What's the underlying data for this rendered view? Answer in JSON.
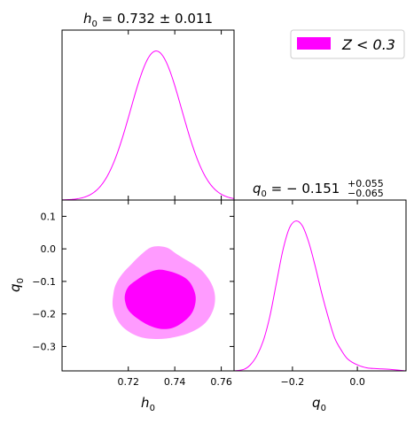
{
  "chart_data": {
    "type": "corner",
    "color": "#ff00ff",
    "fill_outer": "#ff9bff",
    "fill_inner": "#ff00ff",
    "legend": {
      "label": "Z < 0.3",
      "placement": "top-right"
    },
    "h0_marginal": {
      "type": "line",
      "title_prefix": "h",
      "title_sub": "0",
      "title_value": " = 0.732 ± 0.011",
      "mean": 0.732,
      "sigma": 0.011,
      "xlim": [
        0.6915,
        0.7655
      ],
      "ylim": [
        0,
        1.14
      ]
    },
    "q0_marginal": {
      "type": "line",
      "title_prefix": "q",
      "title_sub": "0",
      "title_value": " = − 0.151",
      "title_sup": "+0.055",
      "title_low": "−0.065",
      "xlim": [
        -0.38,
        0.15
      ],
      "ylim": [
        0,
        1.14
      ],
      "x": [
        -0.38,
        -0.35,
        -0.33,
        -0.31,
        -0.29,
        -0.27,
        -0.25,
        -0.23,
        -0.21,
        -0.19,
        -0.17,
        -0.15,
        -0.13,
        -0.11,
        -0.09,
        -0.07,
        -0.05,
        -0.03,
        0.0,
        0.03,
        0.06,
        0.1,
        0.15
      ],
      "y": [
        0.0,
        0.01,
        0.04,
        0.1,
        0.2,
        0.36,
        0.58,
        0.8,
        0.95,
        1.0,
        0.97,
        0.86,
        0.7,
        0.52,
        0.36,
        0.22,
        0.14,
        0.08,
        0.04,
        0.02,
        0.015,
        0.01,
        0.0
      ]
    },
    "joint": {
      "type": "contour",
      "xlim": [
        0.6915,
        0.7655
      ],
      "ylim": [
        -0.375,
        0.15
      ],
      "outer": [
        [
          0.7136,
          -0.138
        ],
        [
          0.7147,
          -0.108
        ],
        [
          0.7174,
          -0.077
        ],
        [
          0.7216,
          -0.045
        ],
        [
          0.7256,
          -0.017
        ],
        [
          0.7296,
          0.004
        ],
        [
          0.7336,
          0.008
        ],
        [
          0.7372,
          0.002
        ],
        [
          0.7404,
          -0.014
        ],
        [
          0.7444,
          -0.032
        ],
        [
          0.7484,
          -0.049
        ],
        [
          0.7521,
          -0.07
        ],
        [
          0.7557,
          -0.106
        ],
        [
          0.7573,
          -0.144
        ],
        [
          0.7566,
          -0.186
        ],
        [
          0.7532,
          -0.227
        ],
        [
          0.7473,
          -0.255
        ],
        [
          0.7402,
          -0.271
        ],
        [
          0.7326,
          -0.277
        ],
        [
          0.7251,
          -0.271
        ],
        [
          0.7189,
          -0.248
        ],
        [
          0.7151,
          -0.216
        ],
        [
          0.7133,
          -0.177
        ]
      ],
      "inner": [
        [
          0.7186,
          -0.14
        ],
        [
          0.7202,
          -0.115
        ],
        [
          0.7239,
          -0.094
        ],
        [
          0.7284,
          -0.074
        ],
        [
          0.7331,
          -0.064
        ],
        [
          0.7377,
          -0.069
        ],
        [
          0.7421,
          -0.08
        ],
        [
          0.7456,
          -0.096
        ],
        [
          0.7478,
          -0.119
        ],
        [
          0.749,
          -0.148
        ],
        [
          0.7485,
          -0.178
        ],
        [
          0.7467,
          -0.204
        ],
        [
          0.7432,
          -0.227
        ],
        [
          0.739,
          -0.243
        ],
        [
          0.734,
          -0.246
        ],
        [
          0.7288,
          -0.235
        ],
        [
          0.7239,
          -0.214
        ],
        [
          0.7202,
          -0.19
        ],
        [
          0.7187,
          -0.164
        ]
      ]
    },
    "axes": {
      "h0_ticks": [
        "0.72",
        "0.74",
        "0.76"
      ],
      "h0_tick_values": [
        0.72,
        0.74,
        0.76
      ],
      "q0_ticks_y": [
        "0.1",
        "0.0",
        "−0.1",
        "−0.2",
        "−0.3"
      ],
      "q0_tick_values_y": [
        0.1,
        0.0,
        -0.1,
        -0.2,
        -0.3
      ],
      "q0_ticks_x": [
        "−0.2",
        "0.0"
      ],
      "q0_tick_values_x": [
        -0.2,
        0.0
      ],
      "xlabel_h0": "h",
      "xlabel_h0_sub": "0",
      "ylabel_q0": "q",
      "ylabel_q0_sub": "0",
      "xlabel_q0": "q",
      "xlabel_q0_sub": "0"
    }
  }
}
